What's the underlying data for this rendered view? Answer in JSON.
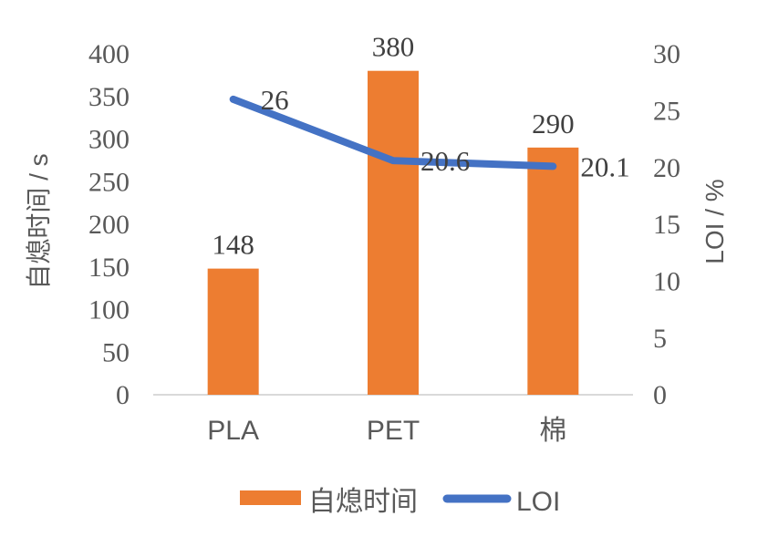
{
  "chart_data": {
    "type": "combo",
    "categories": [
      "PLA",
      "PET",
      "棉"
    ],
    "series": [
      {
        "name": "自熄时间",
        "type": "bar",
        "axis": "left",
        "color": "#ED7D31",
        "values": [
          148,
          380,
          290
        ],
        "labels": [
          "148",
          "380",
          "290"
        ]
      },
      {
        "name": "LOI",
        "type": "line",
        "axis": "right",
        "color": "#4472C4",
        "values": [
          26,
          20.6,
          20.1
        ],
        "labels": [
          "26",
          "20.6",
          "20.1"
        ]
      }
    ],
    "left_axis": {
      "label": "自熄时间 / s",
      "min": 0,
      "max": 400,
      "step": 50,
      "ticks": [
        "0",
        "50",
        "100",
        "150",
        "200",
        "250",
        "300",
        "350",
        "400"
      ]
    },
    "right_axis": {
      "label": "LOI / %",
      "min": 0,
      "max": 30,
      "step": 5,
      "ticks": [
        "0",
        "5",
        "10",
        "15",
        "20",
        "25",
        "30"
      ]
    },
    "legend": [
      "自熄时间",
      "LOI"
    ],
    "colors": {
      "bar": "#ED7D31",
      "line": "#4472C4",
      "axis_line": "#D9D9D9",
      "tick_text": "#595959",
      "label_text": "#404040"
    },
    "grid": "off",
    "legend_position": "bottom"
  }
}
